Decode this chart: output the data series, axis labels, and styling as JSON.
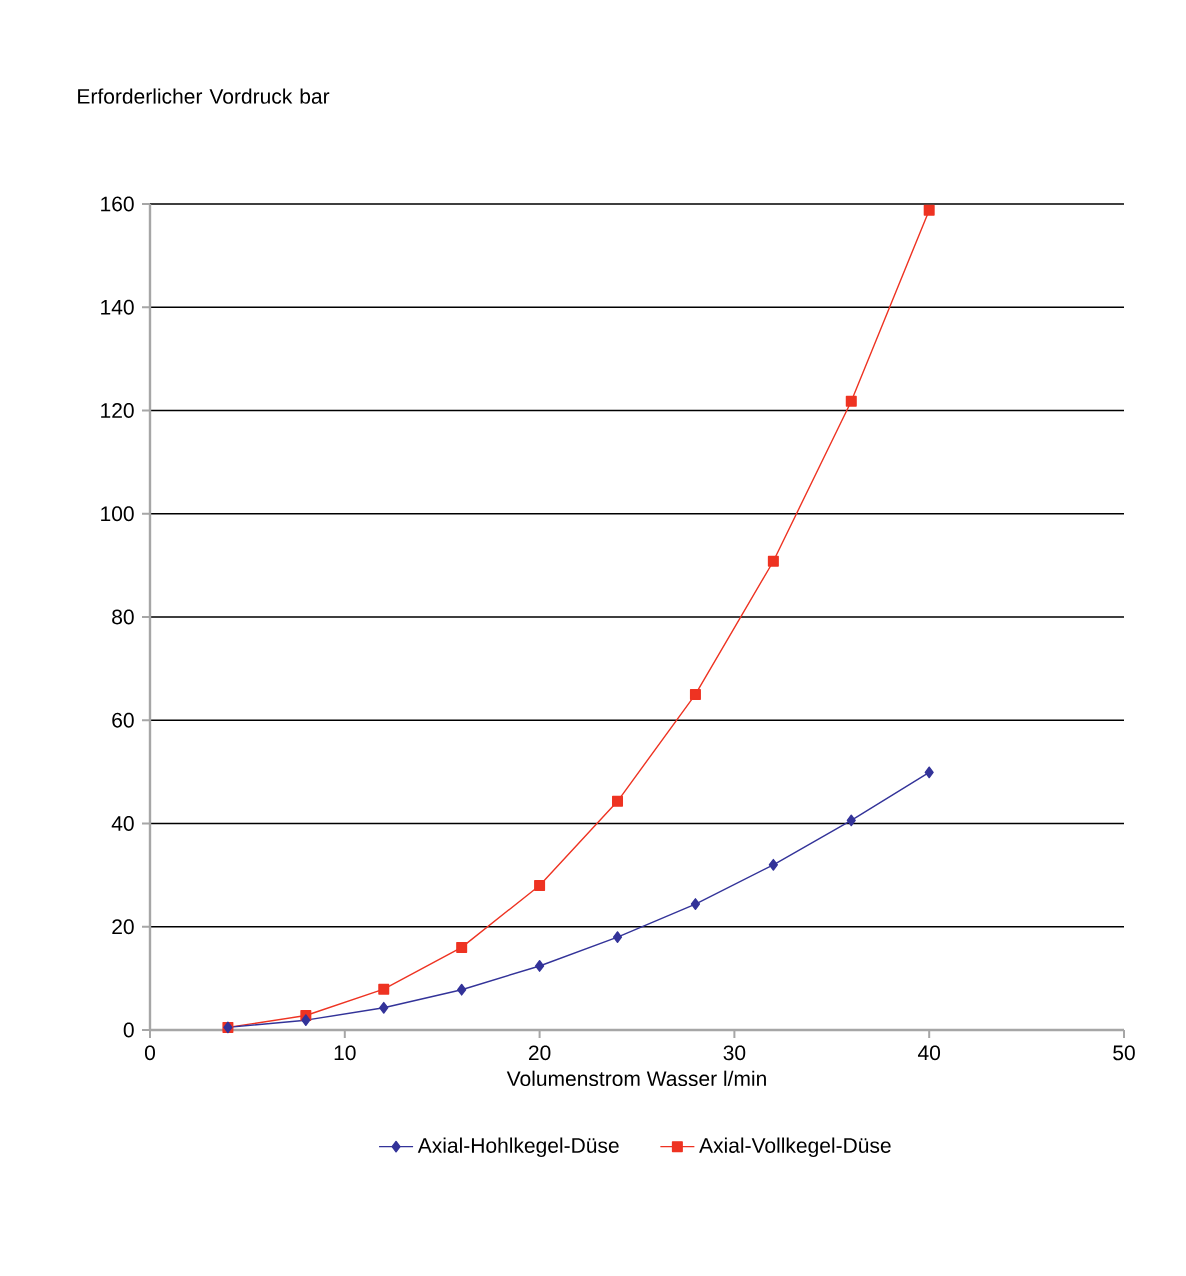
{
  "chart_data": {
    "type": "line",
    "ylabel": "Erforderlicher Vordruck bar",
    "xlabel": "Volumenstrom Wasser l/min",
    "x": [
      4,
      8,
      12,
      16,
      20,
      24,
      28,
      32,
      36,
      40
    ],
    "series": [
      {
        "name": "Axial-Hohlkegel-Düse",
        "color": "#333399",
        "marker": "diamond",
        "values": [
          0.5,
          1.9,
          4.3,
          7.8,
          12.4,
          18,
          24.4,
          32,
          40.6,
          49.9
        ]
      },
      {
        "name": "Axial-Vollkegel-Düse",
        "color": "#ee3322",
        "marker": "square",
        "values": [
          0.5,
          2.8,
          7.9,
          16,
          28,
          44.3,
          65,
          90.8,
          121.8,
          158.8
        ]
      }
    ],
    "xlim": [
      0,
      50
    ],
    "xticks": [
      0,
      10,
      20,
      30,
      40,
      50
    ],
    "ylim": [
      0,
      160
    ],
    "yticks": [
      0,
      20,
      40,
      60,
      80,
      100,
      120,
      140,
      160
    ],
    "grid": "y",
    "legend": "bottom",
    "line_style": "solid"
  }
}
